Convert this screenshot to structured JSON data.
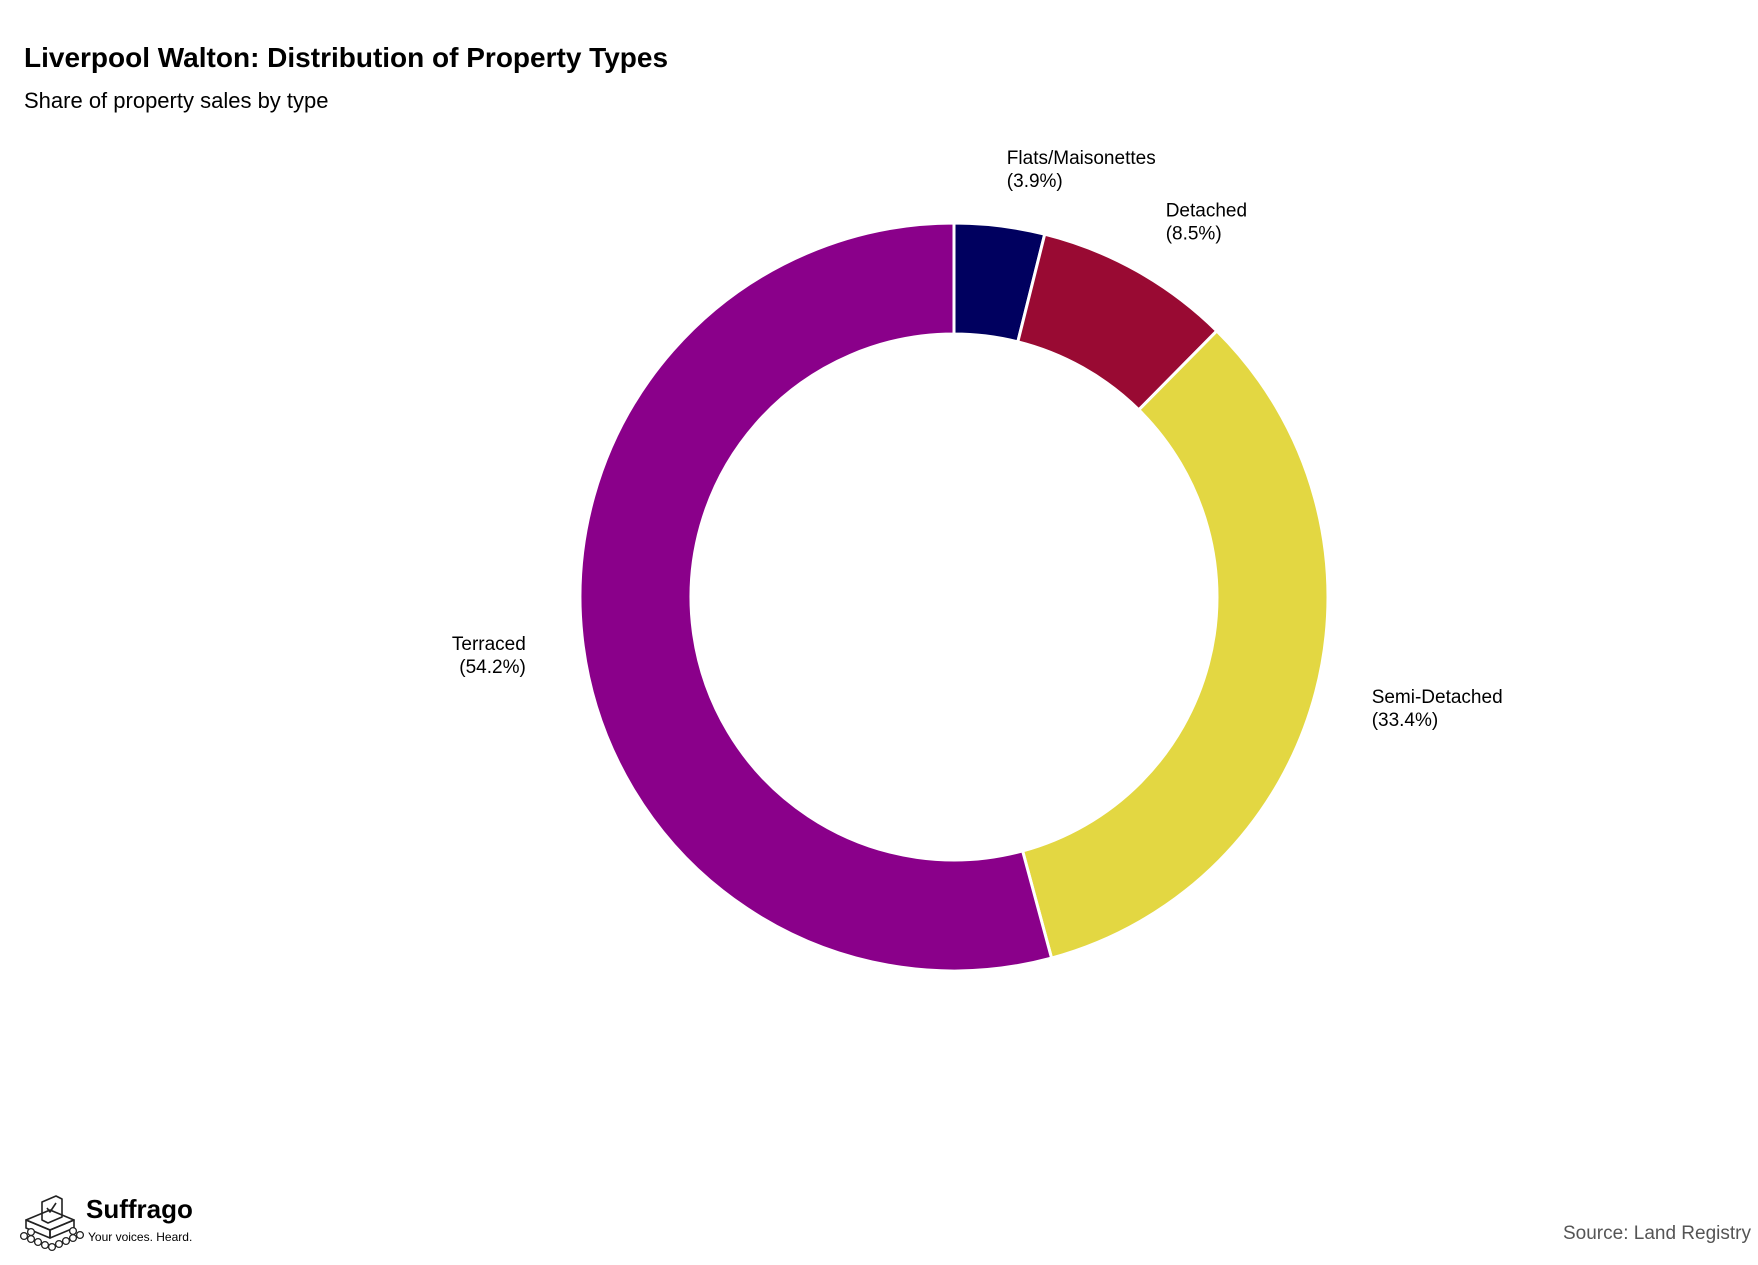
{
  "header": {
    "title": "Liverpool Walton: Distribution of Property Types",
    "subtitle": "Share of property sales by type"
  },
  "chart_data": {
    "type": "pie",
    "donut": true,
    "title": "Liverpool Walton: Distribution of Property Types",
    "subtitle": "Share of property sales by type",
    "start_angle_deg": 0,
    "direction": "clockwise",
    "slices": [
      {
        "name": "Flats/Maisonettes",
        "value": 3.9,
        "label": "(3.9%)",
        "color": "#00005f"
      },
      {
        "name": "Detached",
        "value": 8.5,
        "label": "(8.5%)",
        "color": "#990a33"
      },
      {
        "name": "Semi-Detached",
        "value": 33.4,
        "label": "(33.4%)",
        "color": "#e3d742"
      },
      {
        "name": "Terraced",
        "value": 54.2,
        "label": "(54.2%)",
        "color": "#8a008a"
      }
    ],
    "legend": "none"
  },
  "footer": {
    "brand": "Suffrago",
    "tagline": "Your voices. Heard.",
    "source": "Source: Land Registry",
    "logo_icon": "ballot-box-icon"
  }
}
